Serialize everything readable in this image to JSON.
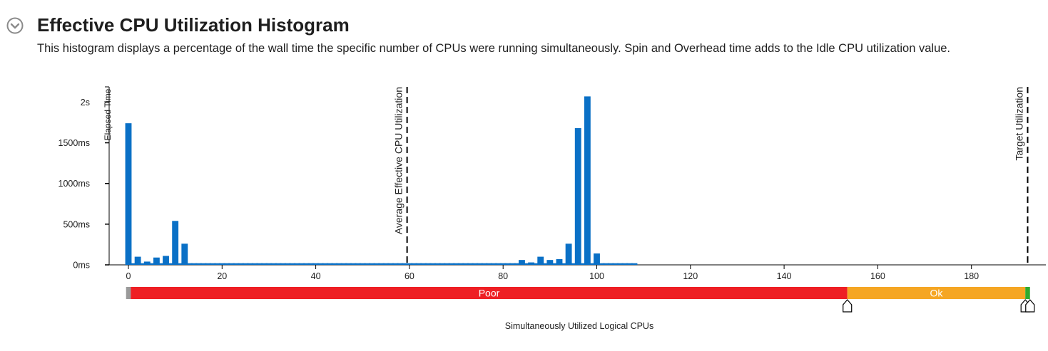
{
  "header": {
    "title": "Effective CPU Utilization Histogram",
    "description": "This histogram displays a percentage of the wall time the specific number of CPUs were running simultaneously. Spin and Overhead time adds to the Idle CPU utilization value.",
    "collapse_icon": "chevron-down-circle-icon"
  },
  "colors": {
    "bar": "#0a70c6",
    "poor": "#ee1f24",
    "ok": "#f5a623",
    "ideal": "#2eaa2e",
    "idle": "#9a9a9a"
  },
  "chart_data": {
    "type": "bar",
    "xlabel": "Simultaneously Utilized Logical CPUs",
    "ylabel": "Elapsed Time",
    "xlim": [
      -4,
      196
    ],
    "ylim": [
      0,
      2250
    ],
    "xticks": [
      0,
      20,
      40,
      60,
      80,
      100,
      120,
      140,
      160,
      180
    ],
    "yticks": [
      {
        "value": 0,
        "label": "0ms"
      },
      {
        "value": 500,
        "label": "500ms"
      },
      {
        "value": 1000,
        "label": "1000ms"
      },
      {
        "value": 1500,
        "label": "1500ms"
      },
      {
        "value": 2000,
        "label": "2s"
      }
    ],
    "x": [
      0,
      1,
      2,
      3,
      4,
      5,
      6,
      7,
      8,
      9,
      10,
      11,
      12,
      13,
      14,
      15,
      16,
      17,
      18,
      19,
      20,
      21,
      22,
      23,
      24,
      25,
      26,
      27,
      28,
      29,
      30,
      31,
      32,
      33,
      34,
      35,
      36,
      37,
      38,
      39,
      40,
      41,
      42,
      43,
      44,
      45,
      46,
      47,
      48,
      49,
      50,
      51,
      52,
      53,
      54,
      55,
      56,
      57,
      58,
      59,
      60,
      61,
      62,
      63,
      64,
      65,
      66,
      67,
      68,
      69,
      70,
      71,
      72,
      73,
      74,
      75,
      76,
      77,
      78,
      79,
      80,
      81,
      82,
      83,
      84,
      85,
      86,
      87,
      88,
      89,
      90,
      91,
      92,
      93,
      94,
      95,
      96,
      97,
      98,
      99,
      100,
      101,
      102,
      103,
      104,
      105,
      106,
      107,
      108
    ],
    "values": [
      1740,
      20,
      100,
      20,
      40,
      20,
      90,
      20,
      110,
      20,
      540,
      20,
      260,
      20,
      20,
      20,
      20,
      20,
      20,
      20,
      20,
      20,
      20,
      20,
      20,
      20,
      20,
      20,
      20,
      20,
      20,
      20,
      20,
      20,
      20,
      20,
      20,
      20,
      20,
      20,
      20,
      20,
      20,
      20,
      20,
      20,
      20,
      20,
      20,
      20,
      20,
      20,
      20,
      20,
      20,
      20,
      20,
      20,
      20,
      20,
      20,
      20,
      20,
      20,
      20,
      20,
      20,
      20,
      20,
      20,
      20,
      20,
      20,
      20,
      20,
      20,
      20,
      20,
      20,
      20,
      20,
      20,
      20,
      20,
      60,
      20,
      30,
      20,
      100,
      20,
      60,
      20,
      70,
      20,
      260,
      20,
      1680,
      20,
      2070,
      20,
      140,
      20,
      20,
      20,
      20,
      20,
      20,
      20,
      20
    ],
    "markers": [
      {
        "label": "Average Effective CPU Utilization",
        "x": 59.5
      },
      {
        "label": "Target Utilization",
        "x": 192
      }
    ],
    "ranges": [
      {
        "label": "",
        "from": -0.5,
        "to": 0.5,
        "color_key": "idle"
      },
      {
        "label": "Poor",
        "from": 0.5,
        "to": 153.5,
        "color_key": "poor"
      },
      {
        "label": "Ok",
        "from": 153.5,
        "to": 191.5,
        "color_key": "ok"
      },
      {
        "label": "",
        "from": 191.5,
        "to": 192.5,
        "color_key": "ideal"
      }
    ],
    "handles": [
      153.5,
      191.5,
      192.5
    ],
    "grid": false,
    "legend": "none"
  }
}
